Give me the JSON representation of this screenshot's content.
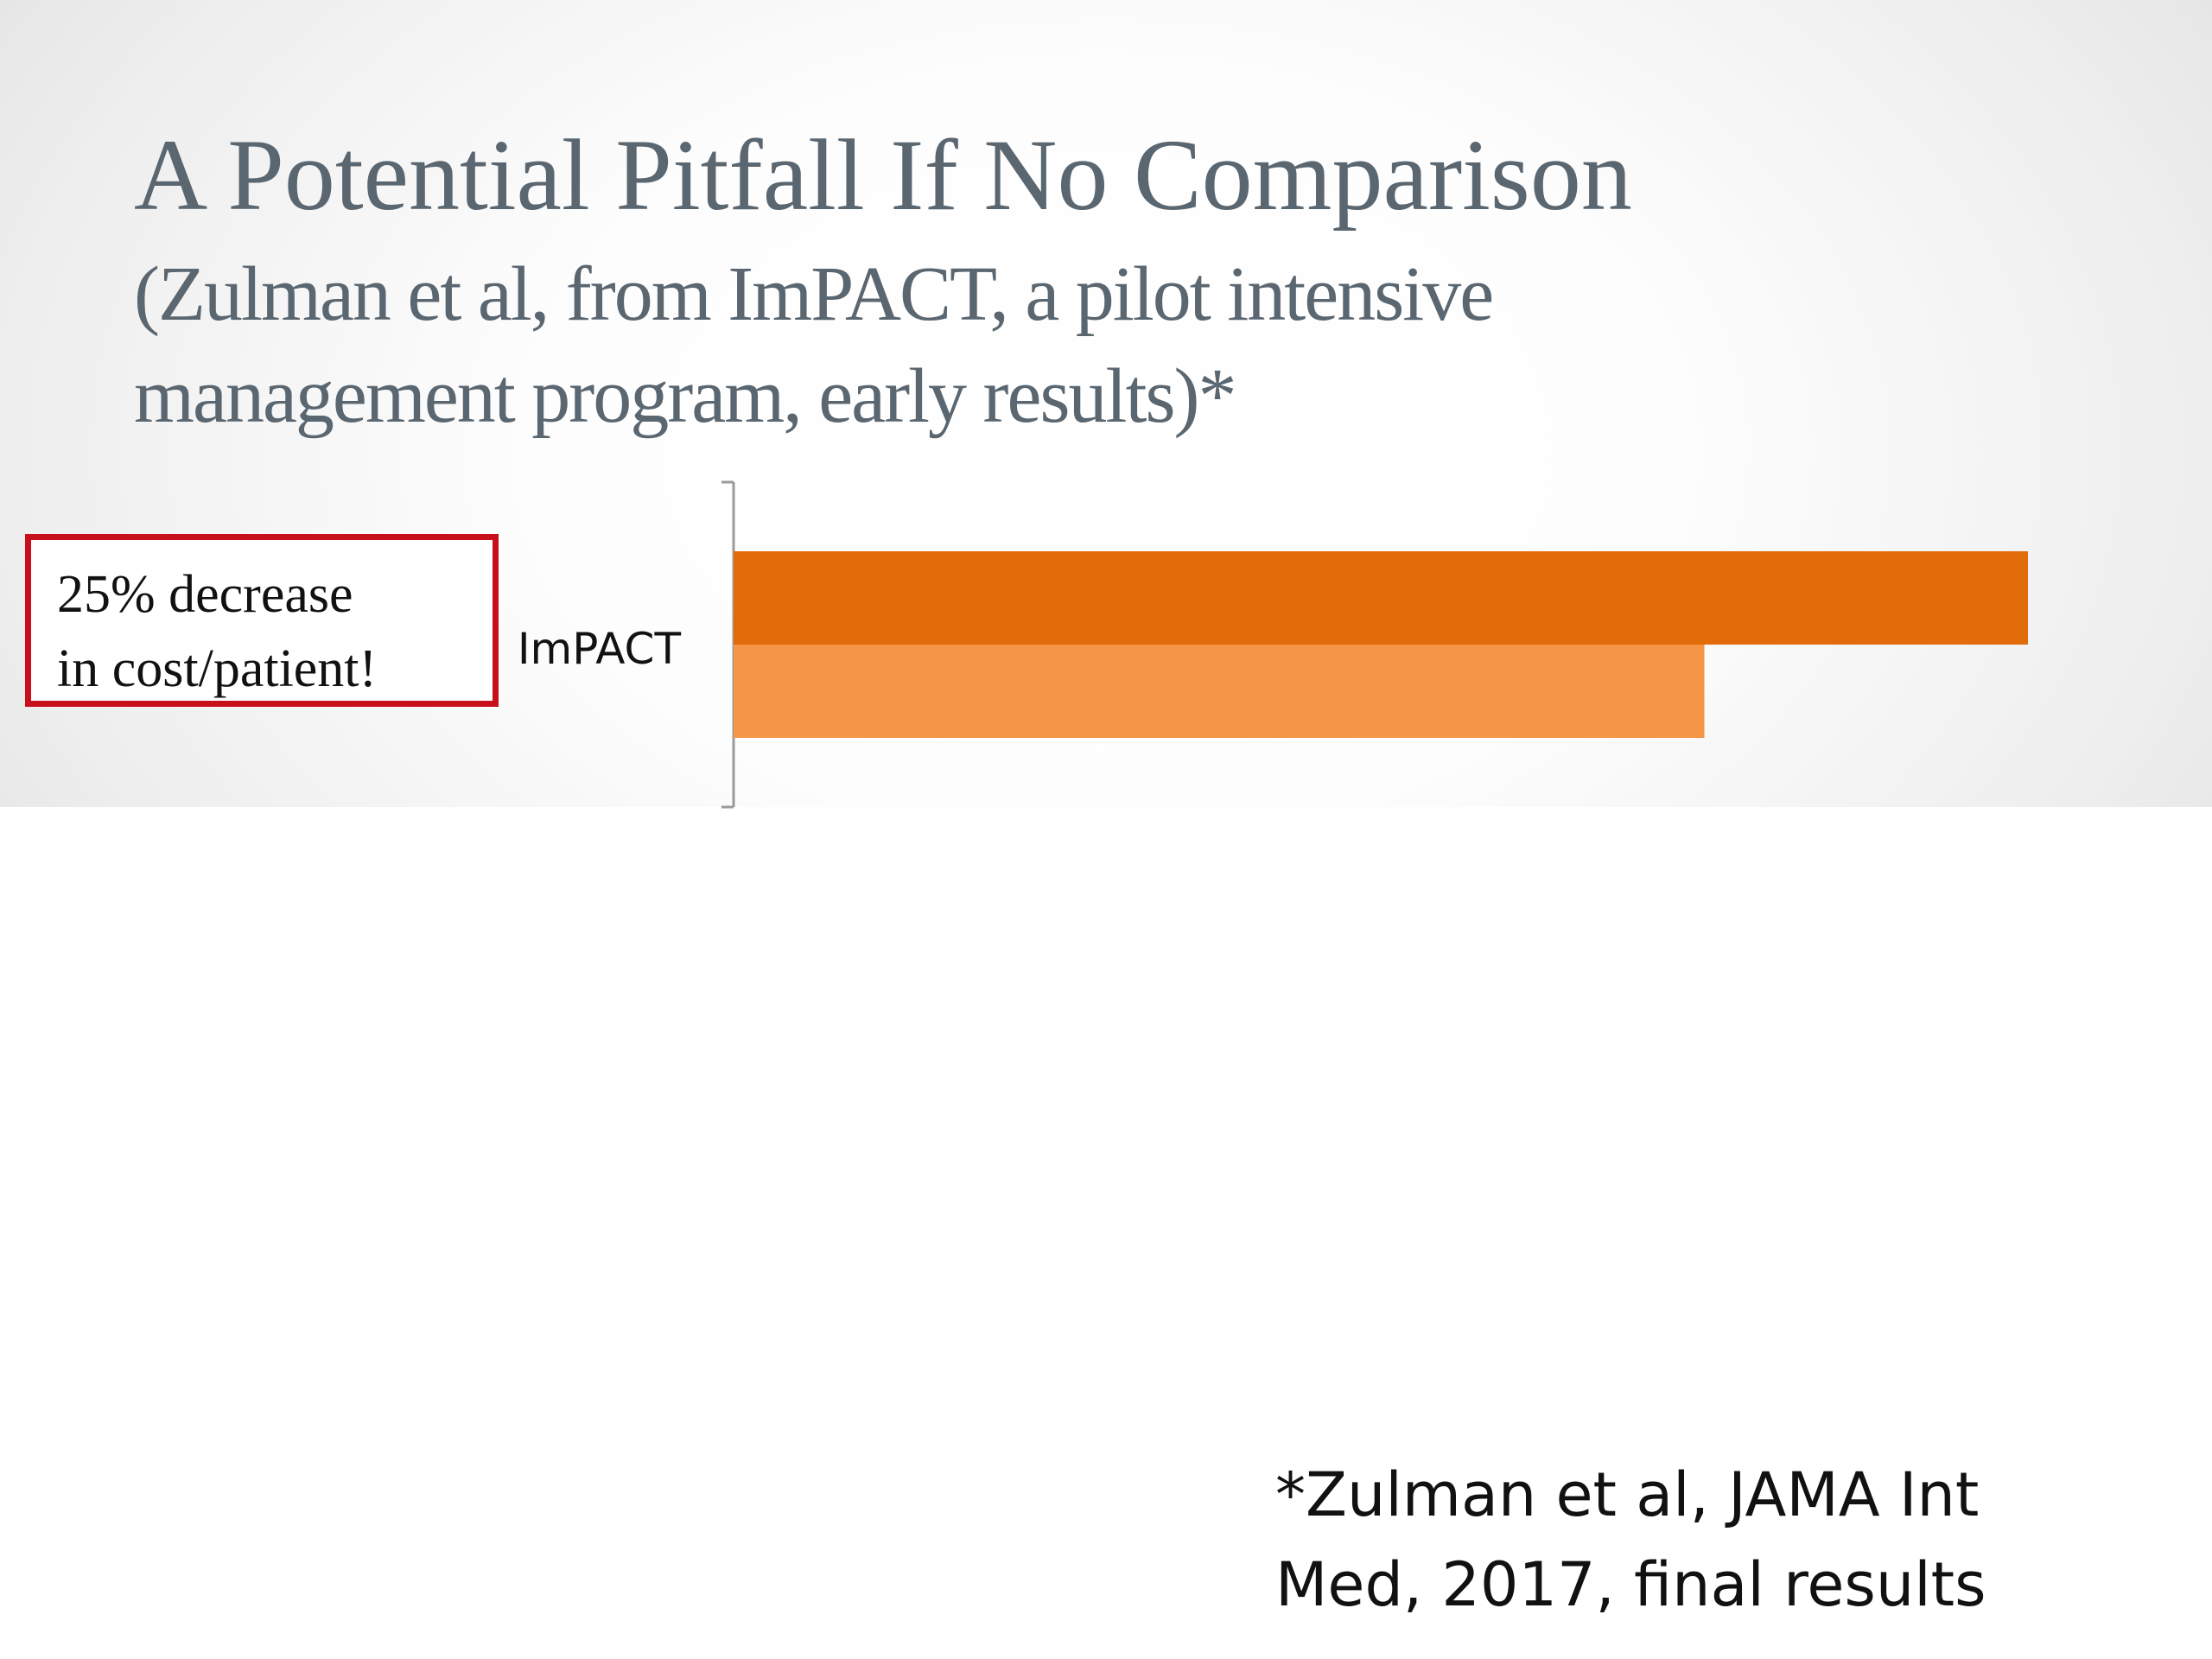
{
  "slide": {
    "title": "A Potential Pitfall If No Comparison",
    "subtitle_line1": "(Zulman et al, from ImPACT, a pilot intensive",
    "subtitle_line2": "management program, early results)*"
  },
  "callout": {
    "line1": "25% decrease",
    "line2": "in cost/patient!",
    "border_color": "#c8101c"
  },
  "footnote": {
    "line1": "*Zulman et al, JAMA Int",
    "line2": "Med, 2017, final results"
  },
  "chart_data": {
    "type": "bar",
    "orientation": "horizontal",
    "categories": [
      "ImPACT"
    ],
    "series": [
      {
        "values": [
          100
        ],
        "color": "#e36c0a"
      },
      {
        "values": [
          75
        ],
        "color": "#f59646"
      }
    ],
    "xlim": [
      0,
      100
    ],
    "grid": false,
    "legend": "none"
  }
}
